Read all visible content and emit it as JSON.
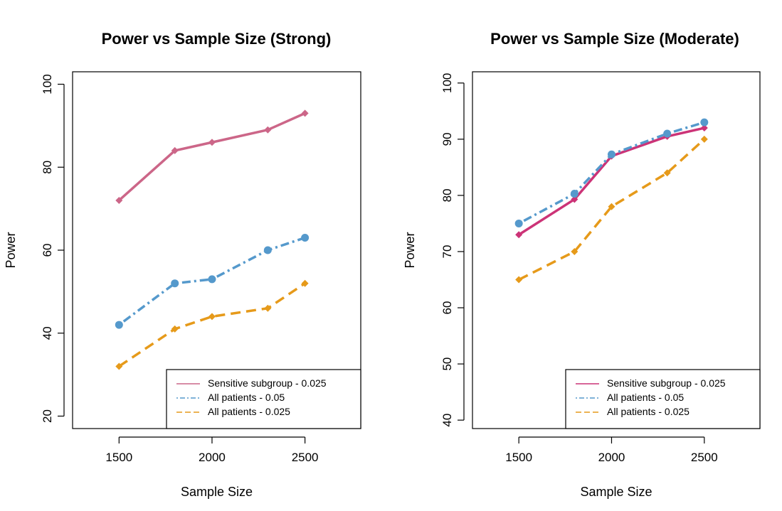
{
  "chart_data": [
    {
      "type": "line",
      "title": "Power vs Sample Size (Strong)",
      "xlabel": "Sample Size",
      "ylabel": "Power",
      "xlim": [
        1250,
        2800
      ],
      "ylim": [
        17,
        103
      ],
      "x_ticks": [
        1500,
        2000,
        2500
      ],
      "y_ticks": [
        20,
        40,
        60,
        80,
        100
      ],
      "x": [
        1500,
        1800,
        2000,
        2300,
        2500
      ],
      "legend_position": "bottom-right",
      "series": [
        {
          "name": "Sensitive subgroup - 0.025",
          "values": [
            72,
            84,
            86,
            89,
            93
          ],
          "color": "#cc6688",
          "dash": "solid",
          "marker": "diamond"
        },
        {
          "name": "All patients - 0.05",
          "values": [
            42,
            52,
            53,
            60,
            63
          ],
          "color": "#5599cc",
          "dash": "dotdash",
          "marker": "circle"
        },
        {
          "name": "All patients - 0.025",
          "values": [
            32,
            41,
            44,
            46,
            52
          ],
          "color": "#e69a1a",
          "dash": "dashed",
          "marker": "diamond"
        }
      ]
    },
    {
      "type": "line",
      "title": "Power vs Sample Size (Moderate)",
      "xlabel": "Sample Size",
      "ylabel": "Power",
      "xlim": [
        1250,
        2800
      ],
      "ylim": [
        38.5,
        102
      ],
      "x_ticks": [
        1500,
        2000,
        2500
      ],
      "y_ticks": [
        40,
        50,
        60,
        70,
        80,
        90,
        100
      ],
      "x": [
        1500,
        1800,
        2000,
        2300,
        2500
      ],
      "legend_position": "bottom-right",
      "series": [
        {
          "name": "Sensitive subgroup - 0.025",
          "values": [
            73,
            79.3,
            87,
            90.5,
            92
          ],
          "color": "#cc3377",
          "dash": "solid",
          "marker": "diamond"
        },
        {
          "name": "All patients - 0.05",
          "values": [
            75,
            80.3,
            87.3,
            91,
            93
          ],
          "color": "#5599cc",
          "dash": "dotdash",
          "marker": "circle"
        },
        {
          "name": "All patients - 0.025",
          "values": [
            65,
            70,
            78,
            84,
            90
          ],
          "color": "#e69a1a",
          "dash": "dashed",
          "marker": "diamond"
        }
      ]
    }
  ]
}
